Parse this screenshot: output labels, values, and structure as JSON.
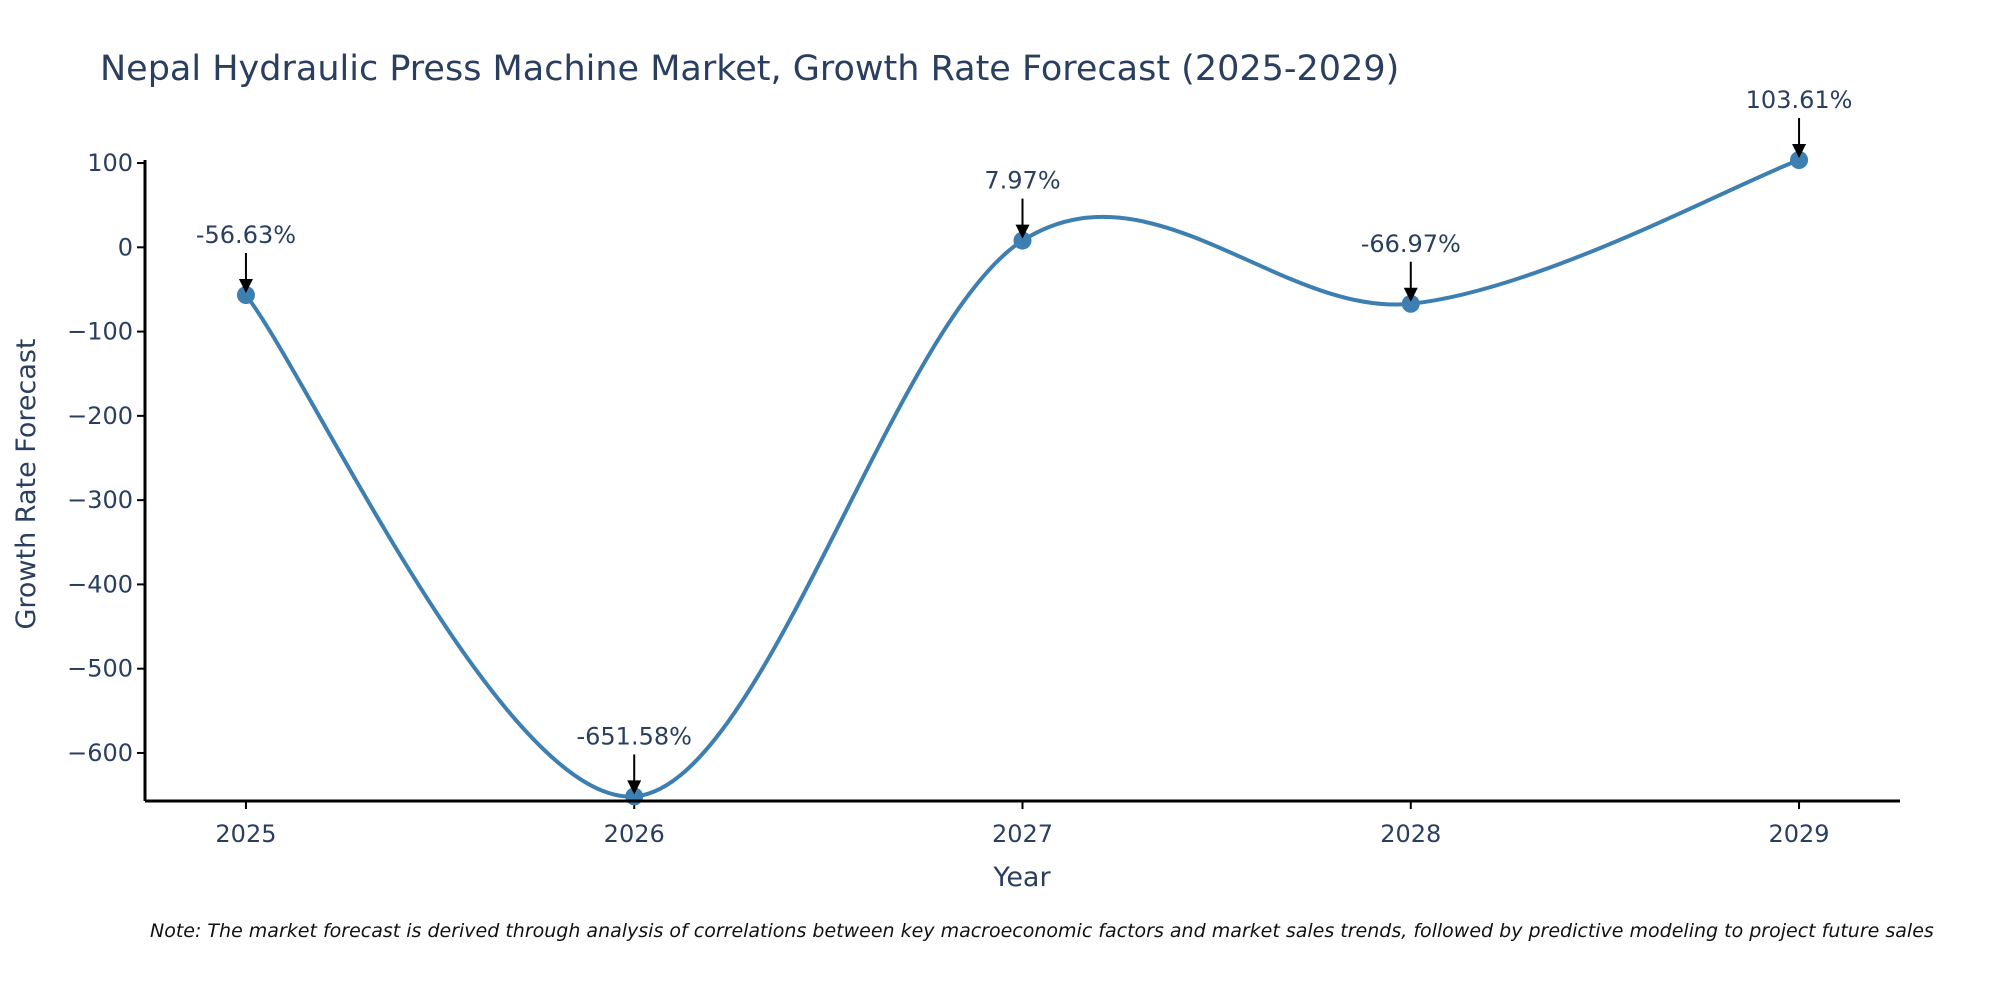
{
  "colors": {
    "line": "#3d7fb0",
    "marker": "#3d7fb0",
    "axis": "#000000",
    "text": "#2a3f5f",
    "arrow": "#000000"
  },
  "chart_data": {
    "type": "line",
    "title": "Nepal Hydraulic Press Machine Market, Growth Rate Forecast (2025-2029)",
    "xlabel": "Year",
    "ylabel": "Growth Rate Forecast",
    "x": [
      "2025",
      "2026",
      "2027",
      "2028",
      "2029"
    ],
    "values": [
      -56.63,
      -651.58,
      7.97,
      -66.97,
      103.61
    ],
    "labels": [
      "-56.63%",
      "-651.58%",
      "7.97%",
      "-66.97%",
      "103.61%"
    ],
    "ylim": [
      -657,
      103.61
    ],
    "xlim": [
      -0.26,
      4.26
    ],
    "yticks": [
      100,
      0,
      -100,
      -200,
      -300,
      -400,
      -500,
      -600
    ],
    "ytick_labels": [
      "100",
      "0",
      "−100",
      "−200",
      "−300",
      "−400",
      "−500",
      "−600"
    ],
    "grid": false,
    "smoothing": "spline"
  },
  "note": "Note: The market forecast is derived through analysis of correlations between key macroeconomic factors and market sales trends, followed by predictive modeling to project future sales"
}
